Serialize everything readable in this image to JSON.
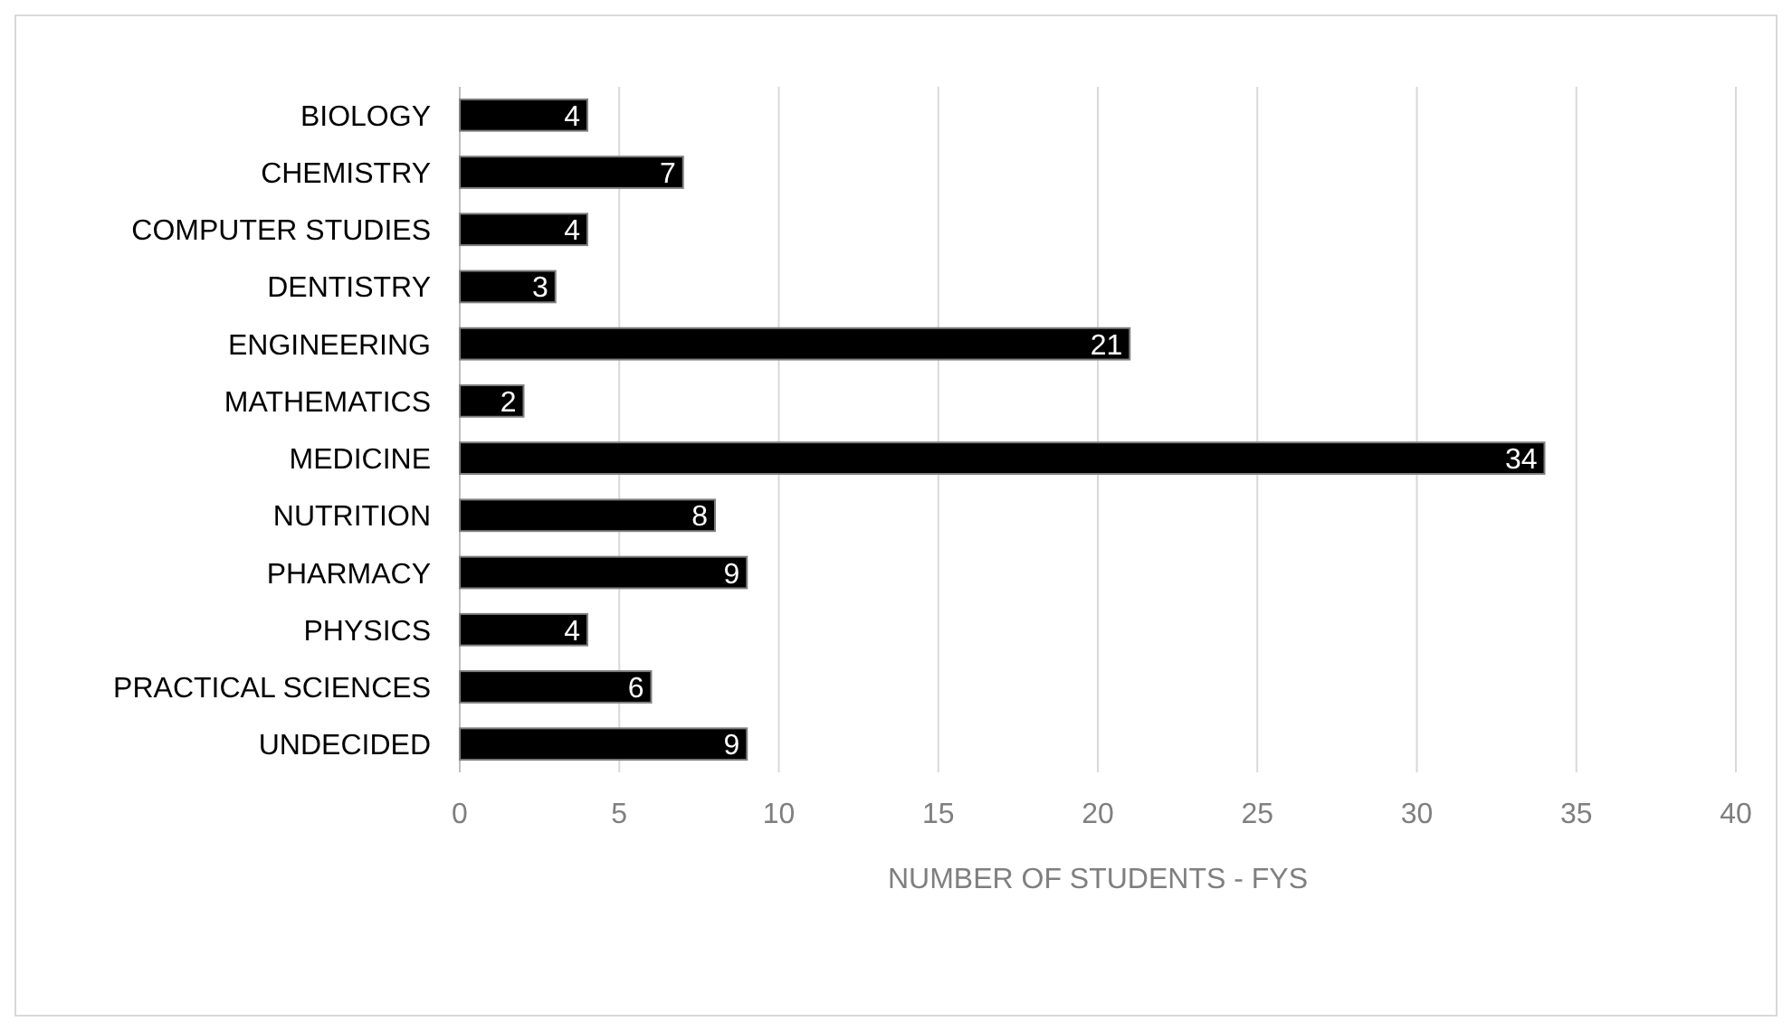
{
  "chart_data": {
    "type": "bar",
    "orientation": "horizontal",
    "xlabel": "NUMBER OF STUDENTS - FYS",
    "categories": [
      "BIOLOGY",
      "CHEMISTRY",
      "COMPUTER STUDIES",
      "DENTISTRY",
      "ENGINEERING",
      "MATHEMATICS",
      "MEDICINE",
      "NUTRITION",
      "PHARMACY",
      "PHYSICS",
      "PRACTICAL SCIENCES",
      "UNDECIDED"
    ],
    "values": [
      4,
      7,
      4,
      3,
      21,
      2,
      34,
      8,
      9,
      4,
      6,
      9
    ],
    "color": "#000000",
    "xlim": [
      0,
      40
    ],
    "xticks": [
      0,
      5,
      10,
      15,
      20,
      25,
      30,
      35,
      40
    ],
    "grid": "x",
    "data_labels": true
  }
}
